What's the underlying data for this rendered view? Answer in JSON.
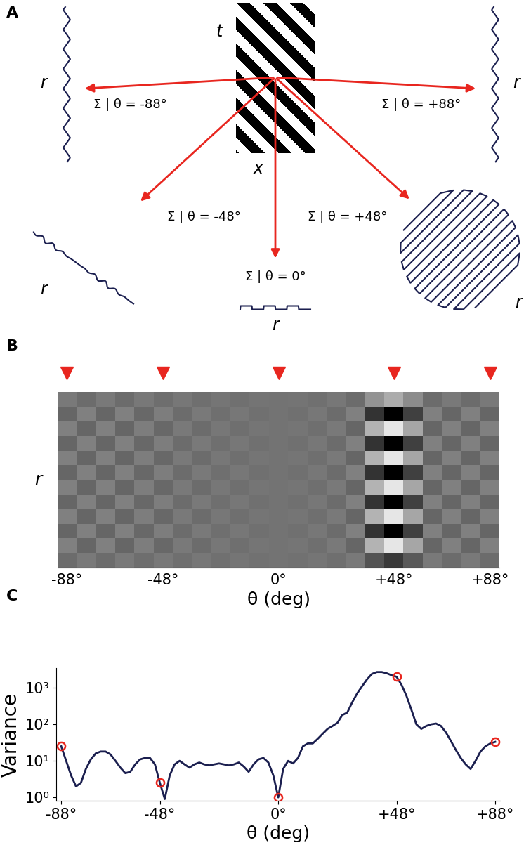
{
  "panel_labels": [
    "A",
    "B",
    "C"
  ],
  "diagram": {
    "grating_axis_labels": [
      "t",
      "x"
    ],
    "projections": [
      {
        "label": "Σ | θ = -88°",
        "trace_label": "r"
      },
      {
        "label": "Σ | θ = +88°",
        "trace_label": "r"
      },
      {
        "label": "Σ | θ = -48°",
        "trace_label": "r"
      },
      {
        "label": "Σ | θ = +48°",
        "trace_label": "r"
      },
      {
        "label": "Σ | θ = 0°",
        "trace_label": "r"
      }
    ]
  },
  "chart_data": [
    {
      "type": "heatmap",
      "x_label": "θ (deg)",
      "y_label": "r",
      "xlim": [
        -92,
        92
      ],
      "xticks": [
        {
          "value": -88,
          "label": "-88°"
        },
        {
          "value": -48,
          "label": "-48°"
        },
        {
          "value": 0,
          "label": "0°"
        },
        {
          "value": 48,
          "label": "+48°"
        },
        {
          "value": 88,
          "label": "+88°"
        }
      ],
      "tick_labels": "x",
      "cell_x": [
        -88,
        -80,
        -72,
        -64,
        -56,
        -48,
        -40,
        -32,
        -24,
        -16,
        -8,
        0,
        8,
        16,
        24,
        32,
        40,
        48,
        56,
        64,
        72,
        80,
        88
      ],
      "cells": [
        [
          -0.05,
          0.05,
          -0.05,
          0.05,
          -0.04,
          0.04,
          -0.03,
          0.03,
          -0.02,
          0.02,
          -0.01,
          0,
          -0.01,
          0.02,
          -0.03,
          0.05,
          -0.25,
          -0.45,
          -0.2,
          0.05,
          -0.05,
          0.05,
          -0.05
        ],
        [
          0.1,
          -0.1,
          0.1,
          -0.1,
          0.08,
          -0.08,
          0.05,
          -0.05,
          0.03,
          -0.03,
          0.02,
          0,
          0.02,
          -0.03,
          0.05,
          -0.1,
          0.5,
          0.9,
          0.4,
          -0.1,
          0.1,
          -0.1,
          0.1
        ],
        [
          -0.1,
          0.1,
          -0.1,
          0.1,
          -0.08,
          0.08,
          -0.05,
          0.05,
          -0.03,
          0.03,
          -0.02,
          0,
          -0.02,
          0.03,
          -0.05,
          0.1,
          -0.5,
          -0.9,
          -0.4,
          0.1,
          -0.1,
          0.1,
          -0.1
        ],
        [
          0.1,
          -0.1,
          0.1,
          -0.1,
          0.08,
          -0.08,
          0.05,
          -0.05,
          0.03,
          -0.03,
          0.02,
          0,
          0.02,
          -0.03,
          0.05,
          -0.1,
          0.5,
          0.9,
          0.4,
          -0.1,
          0.1,
          -0.1,
          0.1
        ],
        [
          -0.1,
          0.1,
          -0.1,
          0.1,
          -0.08,
          0.08,
          -0.05,
          0.05,
          -0.03,
          0.03,
          -0.02,
          0,
          -0.02,
          0.03,
          -0.05,
          0.1,
          -0.5,
          -0.9,
          -0.4,
          0.1,
          -0.1,
          0.1,
          -0.1
        ],
        [
          0.1,
          -0.1,
          0.1,
          -0.1,
          0.08,
          -0.08,
          0.05,
          -0.05,
          0.03,
          -0.03,
          0.02,
          0,
          0.02,
          -0.03,
          0.05,
          -0.1,
          0.5,
          0.9,
          0.4,
          -0.1,
          0.1,
          -0.1,
          0.1
        ],
        [
          -0.1,
          0.1,
          -0.1,
          0.1,
          -0.08,
          0.08,
          -0.05,
          0.05,
          -0.03,
          0.03,
          -0.02,
          0,
          -0.02,
          0.03,
          -0.05,
          0.1,
          -0.5,
          -0.9,
          -0.4,
          0.1,
          -0.1,
          0.1,
          -0.1
        ],
        [
          0.1,
          -0.1,
          0.1,
          -0.1,
          0.08,
          -0.08,
          0.05,
          -0.05,
          0.03,
          -0.03,
          0.02,
          0,
          0.02,
          -0.03,
          0.05,
          -0.1,
          0.5,
          0.9,
          0.4,
          -0.1,
          0.1,
          -0.1,
          0.1
        ],
        [
          -0.1,
          0.1,
          -0.1,
          0.1,
          -0.08,
          0.08,
          -0.05,
          0.05,
          -0.03,
          0.03,
          -0.02,
          0,
          -0.02,
          0.03,
          -0.05,
          0.1,
          -0.5,
          -0.9,
          -0.4,
          0.1,
          -0.1,
          0.1,
          -0.1
        ],
        [
          0.1,
          -0.1,
          0.1,
          -0.1,
          0.08,
          -0.08,
          0.05,
          -0.05,
          0.03,
          -0.03,
          0.02,
          0,
          0.02,
          -0.03,
          0.05,
          -0.1,
          0.5,
          0.9,
          0.4,
          -0.1,
          0.1,
          -0.1,
          0.1
        ],
        [
          -0.1,
          0.1,
          -0.1,
          0.1,
          -0.08,
          0.08,
          -0.05,
          0.05,
          -0.03,
          0.03,
          -0.02,
          0,
          -0.02,
          0.03,
          -0.05,
          0.1,
          -0.5,
          -0.9,
          -0.4,
          0.1,
          -0.1,
          0.1,
          -0.1
        ],
        [
          0.05,
          -0.05,
          0.05,
          -0.05,
          0.04,
          -0.04,
          0.03,
          -0.03,
          0.02,
          -0.02,
          0.01,
          0,
          0.01,
          -0.02,
          0.03,
          -0.05,
          0.25,
          0.45,
          0.2,
          -0.05,
          0.05,
          -0.05,
          0.05
        ]
      ],
      "color_range": [
        -0.9,
        1.1
      ],
      "angle_marks": {
        "x": [
          -88,
          -48,
          0,
          48,
          88
        ],
        "marker": "triangle_down",
        "color": "#e8261f"
      }
    },
    {
      "type": "line",
      "x_label": "θ (deg)",
      "y_label": "Variance",
      "log": "y",
      "xlim": [
        -90,
        90
      ],
      "ylim": [
        0.8,
        3500
      ],
      "xticks": [
        {
          "value": -88,
          "label": "-88°"
        },
        {
          "value": -48,
          "label": "-48°"
        },
        {
          "value": 0,
          "label": "0°"
        },
        {
          "value": 48,
          "label": "+48°"
        },
        {
          "value": 88,
          "label": "+88°"
        }
      ],
      "yticks": [
        {
          "value": 1,
          "label": "10⁰"
        },
        {
          "value": 10,
          "label": "10¹"
        },
        {
          "value": 100,
          "label": "10²"
        },
        {
          "value": 1000,
          "label": "10³"
        }
      ],
      "series": [
        {
          "type": "line",
          "color": "#1b1f4f",
          "x": [
            -88,
            -86,
            -84,
            -82,
            -80,
            -78,
            -76,
            -74,
            -72,
            -70,
            -68,
            -66,
            -64,
            -62,
            -60,
            -58,
            -56,
            -54,
            -52,
            -50,
            -48,
            -46,
            -44,
            -42,
            -40,
            -38,
            -36,
            -34,
            -32,
            -30,
            -28,
            -26,
            -24,
            -22,
            -20,
            -18,
            -16,
            -14,
            -12,
            -10,
            -8,
            -6,
            -4,
            -2,
            0,
            2,
            4,
            6,
            8,
            10,
            12,
            14,
            16,
            18,
            20,
            22,
            24,
            26,
            28,
            30,
            32,
            34,
            36,
            38,
            40,
            42,
            44,
            46,
            48,
            50,
            52,
            54,
            56,
            58,
            60,
            62,
            64,
            66,
            68,
            70,
            72,
            74,
            76,
            78,
            80,
            82,
            84,
            86,
            88
          ],
          "values": [
            25,
            10,
            4,
            2,
            2.5,
            6,
            11,
            16,
            18,
            18,
            15,
            10,
            6.5,
            4.6,
            5,
            8,
            11,
            12,
            12,
            8,
            2.5,
            0.9,
            4,
            8,
            10,
            8,
            6.5,
            8,
            9,
            8,
            7.5,
            8,
            8.5,
            8,
            7.5,
            8,
            9,
            7,
            5,
            8,
            11,
            12,
            9,
            4,
            1,
            6,
            10,
            8.5,
            12,
            25,
            30,
            30,
            40,
            55,
            75,
            90,
            110,
            180,
            210,
            400,
            700,
            1100,
            1700,
            2400,
            2700,
            2700,
            2500,
            2200,
            2000,
            1200,
            600,
            250,
            100,
            75,
            90,
            100,
            105,
            90,
            60,
            35,
            20,
            12,
            8,
            6,
            10,
            18,
            25,
            30,
            33
          ]
        },
        {
          "type": "scatter",
          "marker": "circle",
          "color": "#e8261f",
          "x": [
            -88,
            -48,
            0,
            48,
            88
          ],
          "values": [
            25,
            2.5,
            1,
            2000,
            33
          ]
        }
      ]
    }
  ]
}
